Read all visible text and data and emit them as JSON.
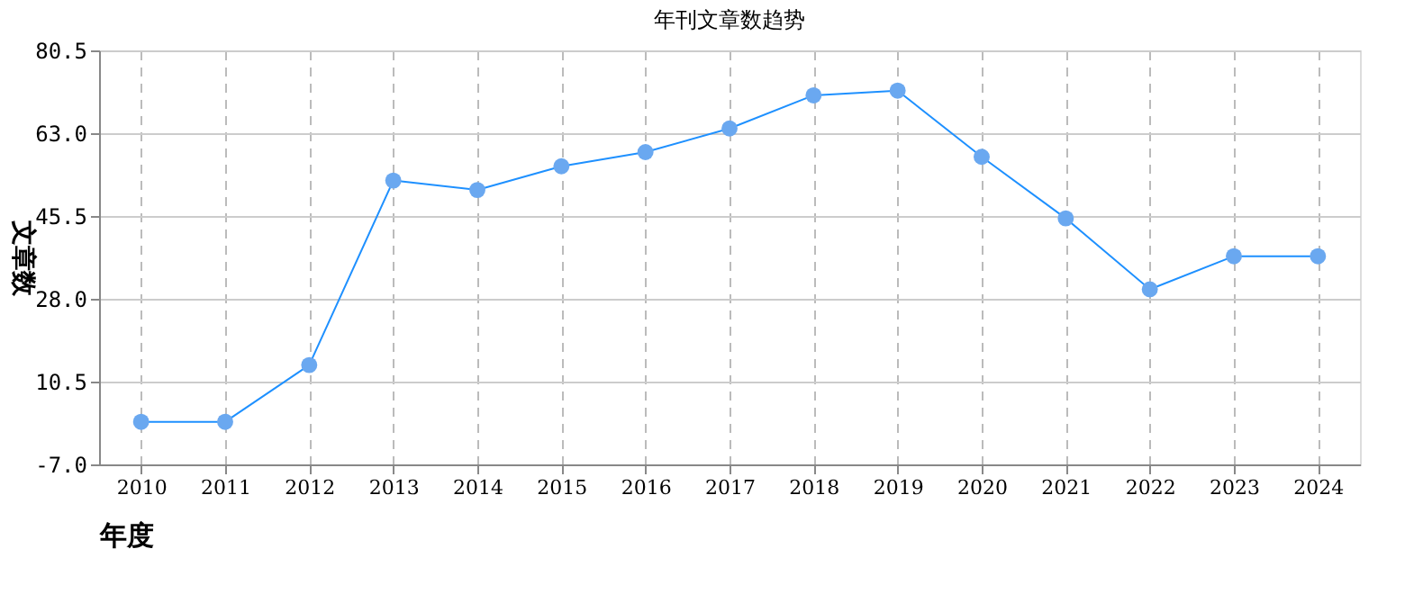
{
  "chart_data": {
    "type": "line",
    "title": "年刊文章数趋势",
    "xlabel": "年度",
    "ylabel": "文章数",
    "categories": [
      "2010",
      "2011",
      "2012",
      "2013",
      "2014",
      "2015",
      "2016",
      "2017",
      "2018",
      "2019",
      "2020",
      "2021",
      "2022",
      "2023",
      "2024"
    ],
    "series": [
      {
        "color": "#1e90ff",
        "values": [
          2,
          2,
          14,
          53,
          51,
          56,
          59,
          64,
          71,
          72,
          58,
          45,
          30,
          37,
          37
        ]
      }
    ],
    "ylim": [
      -7.0,
      80.5
    ],
    "yticks": [
      {
        "value": -7,
        "label": "-7.0"
      },
      {
        "value": 10.5,
        "label": "10.5"
      },
      {
        "value": 28,
        "label": "28.0"
      },
      {
        "value": 45.5,
        "label": "45.5"
      },
      {
        "value": 63,
        "label": "63.0"
      },
      {
        "value": 80.5,
        "label": "80.5"
      }
    ],
    "grid": true,
    "marker": "circle",
    "line_style": "solid",
    "legend": false
  }
}
